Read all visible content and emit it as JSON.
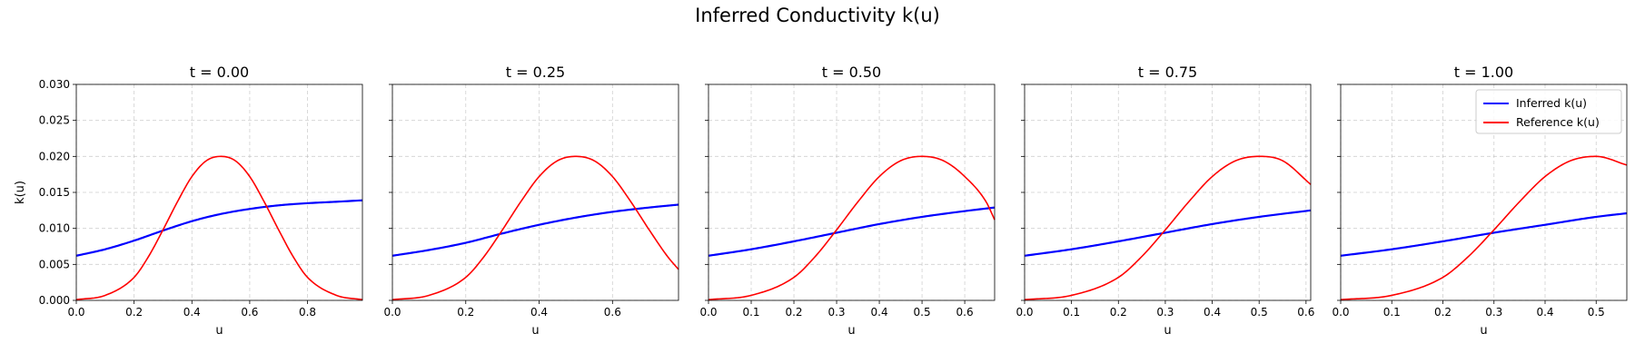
{
  "figure": {
    "suptitle": "Inferred Conductivity k(u)"
  },
  "colors": {
    "inferred": "#0000ff",
    "reference": "#ff0000",
    "grid": "#b0b0b0"
  },
  "legend": {
    "placement": "upper-right",
    "panel": 4,
    "entries": [
      "Inferred k(u)",
      "Reference k(u)"
    ]
  },
  "chart_data": [
    {
      "type": "line",
      "title": "t = 0.00",
      "xlabel": "u",
      "ylabel": "k(u)",
      "xlim": [
        0.0,
        0.99
      ],
      "ylim": [
        0.0,
        0.03
      ],
      "xticks": [
        "0.0",
        "0.2",
        "0.4",
        "0.6",
        "0.8"
      ],
      "yticks": [
        "0.000",
        "0.005",
        "0.010",
        "0.015",
        "0.020",
        "0.025",
        "0.030"
      ],
      "grid": true,
      "series": [
        {
          "name": "Inferred k(u)",
          "x": [
            0.0,
            0.1,
            0.2,
            0.3,
            0.4,
            0.5,
            0.6,
            0.7,
            0.8,
            0.9,
            0.99
          ],
          "y": [
            0.0062,
            0.0071,
            0.0083,
            0.0097,
            0.011,
            0.012,
            0.0127,
            0.0132,
            0.0135,
            0.0137,
            0.0139
          ]
        },
        {
          "name": "Reference k(u)",
          "x": [
            0.0,
            0.1,
            0.2,
            0.25,
            0.3,
            0.35,
            0.4,
            0.45,
            0.5,
            0.55,
            0.6,
            0.65,
            0.7,
            0.75,
            0.8,
            0.9,
            0.99
          ],
          "y": [
            0.0001,
            0.0007,
            0.0032,
            0.0061,
            0.0098,
            0.0137,
            0.0172,
            0.0194,
            0.02,
            0.0194,
            0.0172,
            0.0137,
            0.0098,
            0.0061,
            0.0032,
            0.0007,
            0.0001
          ]
        }
      ]
    },
    {
      "type": "line",
      "title": "t = 0.25",
      "xlabel": "u",
      "ylabel": "",
      "xlim": [
        0.0,
        0.78
      ],
      "ylim": [
        0.0,
        0.03
      ],
      "xticks": [
        "0.0",
        "0.2",
        "0.4",
        "0.6"
      ],
      "yticks": [],
      "grid": true,
      "series": [
        {
          "name": "Inferred k(u)",
          "x": [
            0.0,
            0.1,
            0.2,
            0.3,
            0.4,
            0.5,
            0.6,
            0.7,
            0.78
          ],
          "y": [
            0.0062,
            0.007,
            0.008,
            0.0093,
            0.0105,
            0.0115,
            0.0123,
            0.0129,
            0.0133
          ]
        },
        {
          "name": "Reference k(u)",
          "x": [
            0.0,
            0.1,
            0.2,
            0.25,
            0.3,
            0.35,
            0.4,
            0.45,
            0.5,
            0.55,
            0.6,
            0.65,
            0.7,
            0.75,
            0.78
          ],
          "y": [
            0.0001,
            0.0007,
            0.0032,
            0.0061,
            0.0098,
            0.0137,
            0.0172,
            0.0194,
            0.02,
            0.0194,
            0.0172,
            0.0137,
            0.0098,
            0.0061,
            0.0043
          ]
        }
      ]
    },
    {
      "type": "line",
      "title": "t = 0.50",
      "xlabel": "u",
      "ylabel": "",
      "xlim": [
        0.0,
        0.67
      ],
      "ylim": [
        0.0,
        0.03
      ],
      "xticks": [
        "0.0",
        "0.1",
        "0.2",
        "0.3",
        "0.4",
        "0.5",
        "0.6"
      ],
      "yticks": [],
      "grid": true,
      "series": [
        {
          "name": "Inferred k(u)",
          "x": [
            0.0,
            0.1,
            0.2,
            0.3,
            0.4,
            0.5,
            0.6,
            0.67
          ],
          "y": [
            0.0062,
            0.0071,
            0.0082,
            0.0094,
            0.0106,
            0.0116,
            0.0124,
            0.0129
          ]
        },
        {
          "name": "Reference k(u)",
          "x": [
            0.0,
            0.1,
            0.2,
            0.25,
            0.3,
            0.35,
            0.4,
            0.45,
            0.5,
            0.55,
            0.6,
            0.65,
            0.67
          ],
          "y": [
            0.0001,
            0.0007,
            0.0032,
            0.0061,
            0.0098,
            0.0137,
            0.0172,
            0.0194,
            0.02,
            0.0194,
            0.0172,
            0.0137,
            0.0112
          ]
        }
      ]
    },
    {
      "type": "line",
      "title": "t = 0.75",
      "xlabel": "u",
      "ylabel": "",
      "xlim": [
        0.0,
        0.61
      ],
      "ylim": [
        0.0,
        0.03
      ],
      "xticks": [
        "0.0",
        "0.1",
        "0.2",
        "0.3",
        "0.4",
        "0.5",
        "0.6"
      ],
      "yticks": [],
      "grid": true,
      "series": [
        {
          "name": "Inferred k(u)",
          "x": [
            0.0,
            0.1,
            0.2,
            0.3,
            0.4,
            0.5,
            0.61
          ],
          "y": [
            0.0062,
            0.0071,
            0.0082,
            0.0094,
            0.0106,
            0.0116,
            0.0125
          ]
        },
        {
          "name": "Reference k(u)",
          "x": [
            0.0,
            0.1,
            0.2,
            0.25,
            0.3,
            0.35,
            0.4,
            0.45,
            0.5,
            0.55,
            0.61
          ],
          "y": [
            0.0001,
            0.0007,
            0.0032,
            0.0061,
            0.0098,
            0.0137,
            0.0172,
            0.0194,
            0.02,
            0.0194,
            0.0161
          ]
        }
      ]
    },
    {
      "type": "line",
      "title": "t = 1.00",
      "xlabel": "u",
      "ylabel": "",
      "xlim": [
        0.0,
        0.56
      ],
      "ylim": [
        0.0,
        0.03
      ],
      "xticks": [
        "0.0",
        "0.1",
        "0.2",
        "0.3",
        "0.4",
        "0.5"
      ],
      "yticks": [],
      "grid": true,
      "series": [
        {
          "name": "Inferred k(u)",
          "x": [
            0.0,
            0.1,
            0.2,
            0.3,
            0.4,
            0.5,
            0.56
          ],
          "y": [
            0.0062,
            0.0071,
            0.0082,
            0.0094,
            0.0105,
            0.0116,
            0.0121
          ]
        },
        {
          "name": "Reference k(u)",
          "x": [
            0.0,
            0.1,
            0.2,
            0.25,
            0.3,
            0.35,
            0.4,
            0.45,
            0.5,
            0.56
          ],
          "y": [
            0.0001,
            0.0007,
            0.0032,
            0.0061,
            0.0098,
            0.0137,
            0.0172,
            0.0194,
            0.02,
            0.0188
          ]
        }
      ]
    }
  ]
}
